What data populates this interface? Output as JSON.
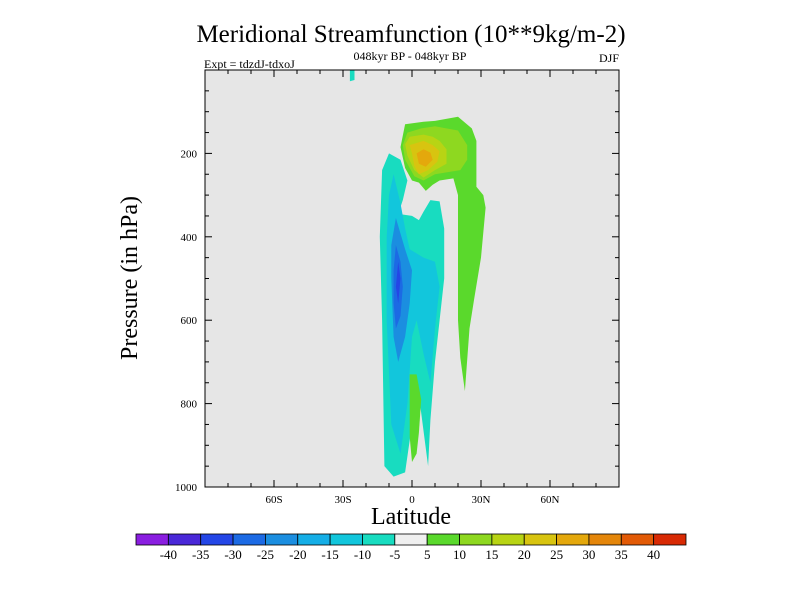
{
  "chart_data": {
    "type": "contour",
    "title": "Meridional Streamfunction (10**9kg/m-2)",
    "subtitle": "048kyr BP - 048kyr BP",
    "left_label": "Expt = tdzdJ-tdxoJ",
    "right_label": "DJF",
    "xlabel": "Latitude",
    "ylabel": "Pressure (in hPa)",
    "xlim": [
      -90,
      90
    ],
    "ylim": [
      1000,
      0
    ],
    "x_ticks": [
      {
        "value": -60,
        "label": "60S"
      },
      {
        "value": -30,
        "label": "30S"
      },
      {
        "value": 0,
        "label": "0"
      },
      {
        "value": 30,
        "label": "30N"
      },
      {
        "value": 60,
        "label": "60N"
      }
    ],
    "y_ticks": [
      {
        "value": 200,
        "label": "200"
      },
      {
        "value": 400,
        "label": "400"
      },
      {
        "value": 600,
        "label": "600"
      },
      {
        "value": 800,
        "label": "800"
      },
      {
        "value": 1000,
        "label": "1000"
      }
    ],
    "colorbar": {
      "levels": [
        "-40",
        "-35",
        "-30",
        "-25",
        "-20",
        "-15",
        "-10",
        "-5",
        "5",
        "10",
        "15",
        "20",
        "25",
        "30",
        "35",
        "40"
      ],
      "colors": [
        "#8a1ee0",
        "#4a28d8",
        "#2446e6",
        "#1c6ae4",
        "#1b8ee0",
        "#15aee6",
        "#12c6dc",
        "#18dcc0",
        "#f0f0f0",
        "#5ad92c",
        "#8ed820",
        "#b8d414",
        "#d8c410",
        "#e4a80c",
        "#e4860a",
        "#e25a06",
        "#d82a04"
      ]
    },
    "regions": [
      {
        "name": "neg-5",
        "color": "#18dcc0",
        "points": [
          [
            -27,
            0
          ],
          [
            -25,
            0
          ],
          [
            -25,
            24
          ],
          [
            -27,
            27
          ]
        ]
      },
      {
        "name": "neg-5",
        "color": "#18dcc0",
        "points": [
          [
            -10,
            200
          ],
          [
            -5,
            215
          ],
          [
            -2,
            265
          ],
          [
            -4,
            312
          ],
          [
            -6,
            345
          ],
          [
            0,
            350
          ],
          [
            3,
            360
          ],
          [
            5,
            340
          ],
          [
            8,
            312
          ],
          [
            12,
            315
          ],
          [
            14,
            380
          ],
          [
            14,
            500
          ],
          [
            12,
            600
          ],
          [
            10,
            700
          ],
          [
            8,
            840
          ],
          [
            7,
            950
          ],
          [
            3,
            780
          ],
          [
            1,
            770
          ],
          [
            0,
            850
          ],
          [
            -3,
            965
          ],
          [
            -8,
            975
          ],
          [
            -12,
            950
          ],
          [
            -13,
            600
          ],
          [
            -14,
            400
          ],
          [
            -13,
            240
          ]
        ]
      },
      {
        "name": "neg-10",
        "color": "#12c6dc",
        "points": [
          [
            -8,
            250
          ],
          [
            -5,
            320
          ],
          [
            -3,
            380
          ],
          [
            -1,
            430
          ],
          [
            5,
            450
          ],
          [
            10,
            460
          ],
          [
            12,
            520
          ],
          [
            10,
            620
          ],
          [
            8,
            750
          ],
          [
            5,
            680
          ],
          [
            2,
            600
          ],
          [
            0,
            640
          ],
          [
            -2,
            800
          ],
          [
            -5,
            920
          ],
          [
            -9,
            850
          ],
          [
            -11,
            600
          ],
          [
            -11,
            400
          ],
          [
            -10,
            300
          ]
        ]
      },
      {
        "name": "neg-15",
        "color": "#1b8ee0",
        "points": [
          [
            -7,
            355
          ],
          [
            -3,
            430
          ],
          [
            0,
            480
          ],
          [
            -1,
            560
          ],
          [
            -3,
            640
          ],
          [
            -6,
            700
          ],
          [
            -8,
            640
          ],
          [
            -9,
            500
          ],
          [
            -9,
            420
          ]
        ]
      },
      {
        "name": "neg-20",
        "color": "#1c6ae4",
        "points": [
          [
            -7,
            420
          ],
          [
            -5,
            460
          ],
          [
            -4,
            520
          ],
          [
            -5,
            590
          ],
          [
            -7,
            620
          ],
          [
            -8,
            560
          ],
          [
            -8,
            480
          ]
        ]
      },
      {
        "name": "neg-25",
        "color": "#2446e6",
        "points": [
          [
            -6,
            460
          ],
          [
            -5,
            500
          ],
          [
            -6,
            560
          ],
          [
            -7,
            520
          ]
        ]
      },
      {
        "name": "pos-5",
        "color": "#5ad92c",
        "points": [
          [
            -5,
            185
          ],
          [
            -3,
            130
          ],
          [
            5,
            124
          ],
          [
            10,
            122
          ],
          [
            20,
            112
          ],
          [
            26,
            140
          ],
          [
            28,
            170
          ],
          [
            28,
            280
          ],
          [
            31,
            300
          ],
          [
            32,
            330
          ],
          [
            30,
            450
          ],
          [
            27,
            550
          ],
          [
            25,
            620
          ],
          [
            23,
            770
          ],
          [
            21,
            690
          ],
          [
            20,
            600
          ],
          [
            20,
            400
          ],
          [
            20,
            300
          ],
          [
            18,
            260
          ],
          [
            12,
            265
          ],
          [
            9,
            275
          ],
          [
            6,
            290
          ],
          [
            3,
            270
          ],
          [
            0,
            265
          ],
          [
            -3,
            235
          ]
        ]
      },
      {
        "name": "pos-5",
        "color": "#5ad92c",
        "points": [
          [
            -1,
            730
          ],
          [
            2,
            730
          ],
          [
            4,
            790
          ],
          [
            3,
            870
          ],
          [
            2,
            920
          ],
          [
            0,
            940
          ],
          [
            -1,
            880
          ]
        ]
      },
      {
        "name": "pos-10",
        "color": "#8ed820",
        "points": [
          [
            -4,
            180
          ],
          [
            -2,
            150
          ],
          [
            4,
            140
          ],
          [
            10,
            135
          ],
          [
            20,
            145
          ],
          [
            24,
            180
          ],
          [
            24,
            215
          ],
          [
            21,
            240
          ],
          [
            10,
            250
          ],
          [
            5,
            265
          ],
          [
            1,
            255
          ],
          [
            -3,
            215
          ]
        ]
      },
      {
        "name": "pos-15",
        "color": "#b8d414",
        "points": [
          [
            -3,
            178
          ],
          [
            -1,
            160
          ],
          [
            5,
            155
          ],
          [
            9,
            160
          ],
          [
            12,
            170
          ],
          [
            15,
            190
          ],
          [
            15,
            225
          ],
          [
            10,
            240
          ],
          [
            5,
            258
          ],
          [
            1,
            240
          ],
          [
            -2,
            205
          ]
        ]
      },
      {
        "name": "pos-20",
        "color": "#d8c410",
        "points": [
          [
            -1,
            180
          ],
          [
            5,
            170
          ],
          [
            9,
            180
          ],
          [
            12,
            195
          ],
          [
            11,
            220
          ],
          [
            7,
            240
          ],
          [
            3,
            250
          ],
          [
            1,
            230
          ],
          [
            0,
            200
          ]
        ]
      },
      {
        "name": "pos-25",
        "color": "#e4a80c",
        "points": [
          [
            2,
            200
          ],
          [
            5,
            190
          ],
          [
            8,
            198
          ],
          [
            9,
            215
          ],
          [
            6,
            232
          ],
          [
            3,
            225
          ]
        ]
      }
    ]
  }
}
